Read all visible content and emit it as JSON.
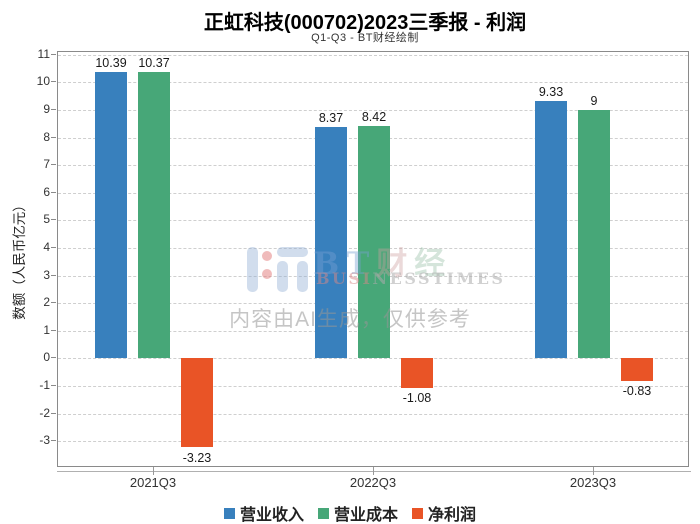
{
  "chart_data": {
    "type": "bar",
    "title": "正虹科技(000702)2023三季报 - 利润",
    "subtitle": "Q1-Q3 - BT财经绘制",
    "categories": [
      "2021Q3",
      "2022Q3",
      "2023Q3"
    ],
    "series": [
      {
        "name": "营业收入",
        "color": "#3880bd",
        "values": [
          10.39,
          8.37,
          9.33
        ]
      },
      {
        "name": "营业成本",
        "color": "#47a778",
        "values": [
          10.37,
          8.42,
          9
        ]
      },
      {
        "name": "净利润",
        "color": "#e95426",
        "values": [
          -3.23,
          -1.08,
          -0.83
        ]
      }
    ],
    "xlabel": "",
    "ylabel": "数额（人民币亿元）",
    "yticks": [
      11,
      10,
      9,
      8,
      7,
      6,
      5,
      4,
      3,
      2,
      1,
      0,
      -1,
      -2,
      -3
    ],
    "ylim": [
      -3.9,
      11.1
    ],
    "grid": "horizontal-dashed",
    "legend_position": "bottom-center",
    "value_labels": [
      "10.39",
      "10.37",
      "-3.23",
      "8.37",
      "8.42",
      "-1.08",
      "9.33",
      "9",
      "-0.83"
    ]
  },
  "watermark": {
    "logo": {
      "bt": "BT",
      "cai": "财",
      "jing": "经"
    },
    "logo_sub": {
      "head": "BUSI",
      "tail": "NESSTIMES"
    },
    "ai_note": "内容由AI生成，仅供参考"
  }
}
